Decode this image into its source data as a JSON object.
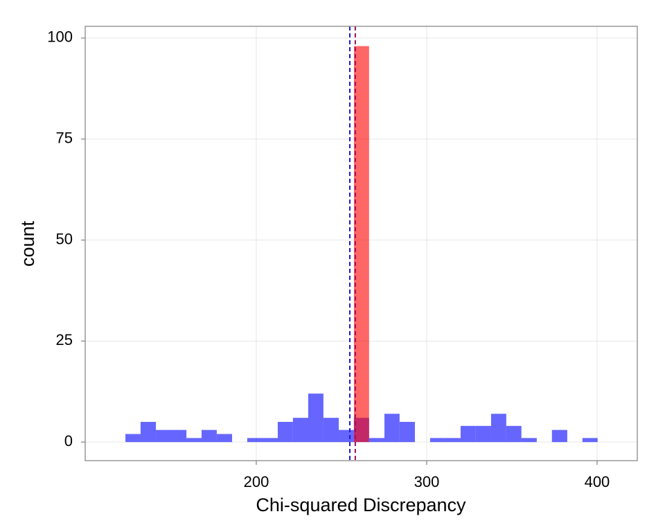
{
  "chart_data": {
    "type": "histogram",
    "xlabel": "Chi-squared Discrepancy",
    "ylabel": "count",
    "xlim": [
      99.6,
      423.6
    ],
    "ylim": [
      -4.6,
      102.9
    ],
    "xticks": [
      200,
      300,
      400
    ],
    "yticks": [
      0,
      25,
      50,
      75,
      100
    ],
    "grid": true,
    "series": [
      {
        "color": "#0000ff",
        "bins": [
          123.2,
          132.1,
          141.1,
          150.0,
          159.0,
          167.9,
          176.8,
          185.8,
          194.7,
          203.7,
          212.6,
          221.5,
          230.5,
          239.4,
          248.4,
          257.3,
          266.2,
          275.2,
          284.1,
          293.1,
          302.0,
          310.9,
          319.9,
          328.8,
          337.8,
          346.7,
          355.6,
          364.6,
          373.5,
          382.5,
          391.4,
          400.3
        ],
        "values": [
          2,
          5,
          3,
          3,
          1,
          3,
          2,
          0,
          1,
          1,
          5,
          6,
          12,
          6,
          3,
          6,
          1,
          7,
          5,
          0,
          1,
          1,
          4,
          4,
          7,
          4,
          1,
          0,
          3,
          0,
          1
        ]
      },
      {
        "color": "#ff0000",
        "bins": [
          257.3,
          266.2
        ],
        "values": [
          98
        ]
      }
    ],
    "vlines": [
      {
        "x": 254.9,
        "color": "#1a1ad0"
      },
      {
        "x": 258.1,
        "color": "#9a1060"
      }
    ]
  }
}
